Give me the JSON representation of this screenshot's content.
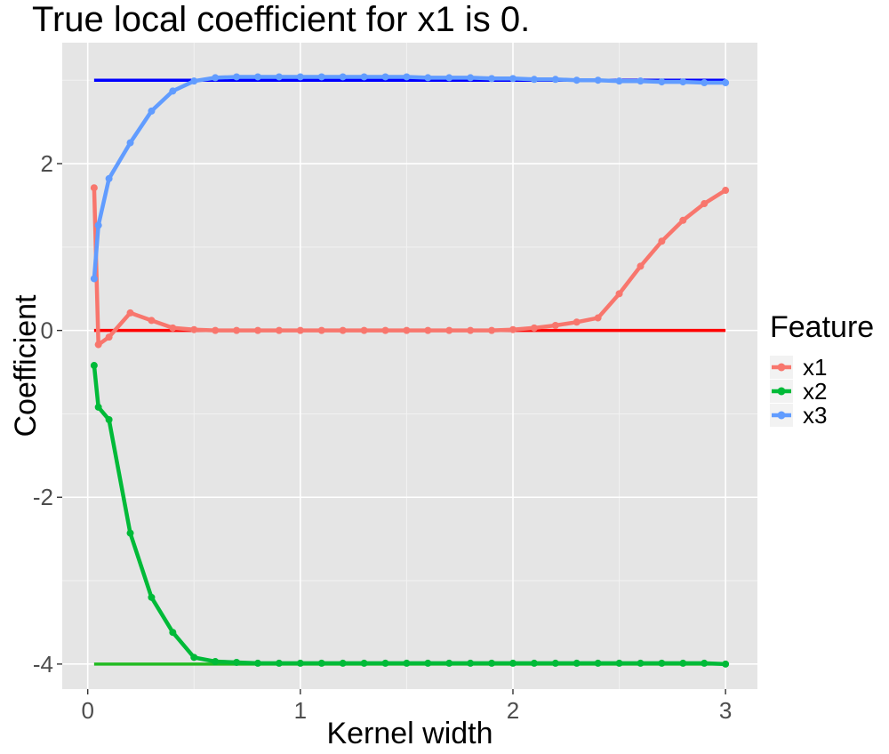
{
  "chart_data": {
    "type": "line",
    "title": "True local coefficient for x1 is 0.",
    "xlabel": "Kernel width",
    "ylabel": "Coefficient",
    "xlim": [
      -0.12,
      3.15
    ],
    "ylim": [
      -4.3,
      3.45
    ],
    "x_ticks": [
      0,
      1,
      2,
      3
    ],
    "x_tick_labels": [
      "0",
      "1",
      "2",
      "3"
    ],
    "y_ticks": [
      -4,
      -2,
      0,
      2
    ],
    "y_tick_labels": [
      "-4",
      "-2",
      "0",
      "2"
    ],
    "grid": true,
    "panel_background": "#e5e5e5",
    "legend": {
      "title": "Feature",
      "placement": "right",
      "entries": [
        "x1",
        "x2",
        "x3"
      ]
    },
    "x": [
      0.03,
      0.05,
      0.1,
      0.2,
      0.3,
      0.4,
      0.5,
      0.6,
      0.7,
      0.8,
      0.9,
      1.0,
      1.1,
      1.2,
      1.3,
      1.4,
      1.5,
      1.6,
      1.7,
      1.8,
      1.9,
      2.0,
      2.1,
      2.2,
      2.3,
      2.4,
      2.5,
      2.6,
      2.7,
      2.8,
      2.9,
      3.0
    ],
    "series": [
      {
        "name": "x1",
        "color": "#f8766d",
        "values": [
          1.71,
          -0.17,
          -0.08,
          0.21,
          0.12,
          0.03,
          0.01,
          0.0,
          0.0,
          0.0,
          0.0,
          0.0,
          0.0,
          0.0,
          0.0,
          0.0,
          0.0,
          0.0,
          0.0,
          0.0,
          0.0,
          0.01,
          0.03,
          0.06,
          0.1,
          0.15,
          0.44,
          0.77,
          1.07,
          1.32,
          1.52,
          1.68
        ]
      },
      {
        "name": "x2",
        "color": "#00ba38",
        "values": [
          -0.42,
          -0.92,
          -1.07,
          -2.43,
          -3.2,
          -3.62,
          -3.92,
          -3.97,
          -3.98,
          -3.99,
          -3.99,
          -3.99,
          -3.99,
          -3.99,
          -3.99,
          -3.99,
          -3.99,
          -3.99,
          -3.99,
          -3.99,
          -3.99,
          -3.99,
          -3.99,
          -3.99,
          -3.99,
          -3.99,
          -3.99,
          -3.99,
          -3.99,
          -3.99,
          -3.99,
          -4.0
        ]
      },
      {
        "name": "x3",
        "color": "#619cff",
        "values": [
          0.62,
          1.26,
          1.82,
          2.25,
          2.63,
          2.87,
          2.99,
          3.03,
          3.04,
          3.04,
          3.04,
          3.04,
          3.04,
          3.04,
          3.04,
          3.04,
          3.04,
          3.03,
          3.03,
          3.03,
          3.02,
          3.02,
          3.01,
          3.01,
          3.0,
          3.0,
          2.99,
          2.99,
          2.98,
          2.98,
          2.97,
          2.97
        ]
      }
    ],
    "reference_lines": [
      {
        "feature": "x1",
        "value": 0,
        "x_range": [
          0.03,
          3.0
        ],
        "color": "#ff0000"
      },
      {
        "feature": "x2",
        "value": -4,
        "x_range": [
          0.03,
          3.0
        ],
        "color": "#22bb22"
      },
      {
        "feature": "x3",
        "value": 3,
        "x_range": [
          0.03,
          3.0
        ],
        "color": "#0000ff"
      }
    ]
  }
}
